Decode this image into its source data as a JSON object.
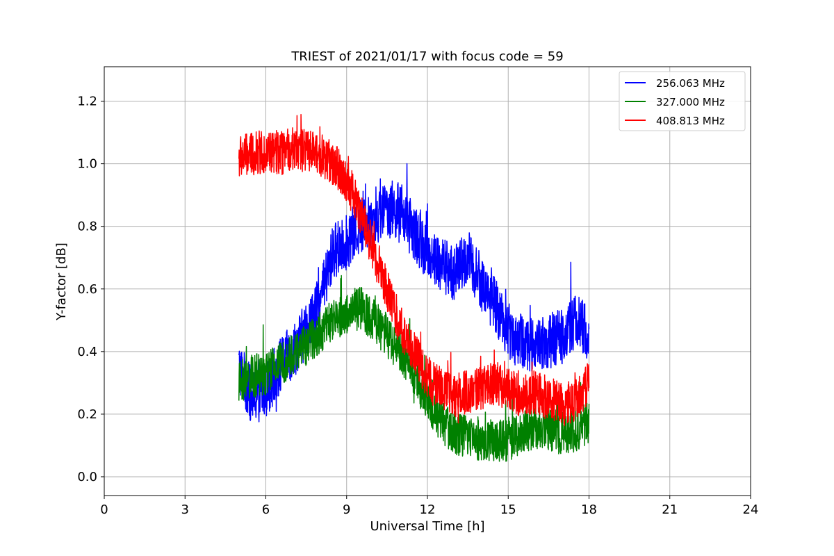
{
  "chart_data": {
    "type": "line",
    "title": "TRIEST of 2021/01/17 with focus code = 59",
    "xlabel": "Universal Time [h]",
    "ylabel": "Y-factor [dB]",
    "xlim": [
      0,
      24
    ],
    "ylim": [
      -0.06,
      1.31
    ],
    "xticks": [
      0,
      3,
      6,
      9,
      12,
      15,
      18,
      21,
      24
    ],
    "xtick_labels": [
      "0",
      "3",
      "6",
      "9",
      "12",
      "15",
      "18",
      "21",
      "24"
    ],
    "yticks": [
      0.0,
      0.2,
      0.4,
      0.6,
      0.8,
      1.0,
      1.2
    ],
    "ytick_labels": [
      "0.0",
      "0.2",
      "0.4",
      "0.6",
      "0.8",
      "1.0",
      "1.2"
    ],
    "grid": true,
    "legend_position": "top-right",
    "series": [
      {
        "name": "256.063 MHz",
        "color": "#0000ff",
        "x": [
          5.0,
          5.5,
          6.0,
          6.5,
          7.0,
          7.5,
          8.0,
          8.5,
          9.0,
          9.5,
          10.0,
          10.5,
          11.0,
          11.5,
          12.0,
          12.5,
          13.0,
          13.5,
          14.0,
          14.5,
          15.0,
          15.5,
          16.0,
          16.5,
          17.0,
          17.5,
          18.0
        ],
        "values": [
          0.35,
          0.25,
          0.28,
          0.35,
          0.4,
          0.47,
          0.55,
          0.72,
          0.75,
          0.8,
          0.82,
          0.86,
          0.85,
          0.78,
          0.72,
          0.68,
          0.65,
          0.7,
          0.62,
          0.55,
          0.47,
          0.43,
          0.42,
          0.43,
          0.45,
          0.5,
          0.45
        ],
        "noise": 0.09
      },
      {
        "name": "327.000 MHz",
        "color": "#008000",
        "x": [
          5.0,
          5.5,
          6.0,
          6.5,
          7.0,
          7.5,
          8.0,
          8.5,
          9.0,
          9.5,
          10.0,
          10.5,
          11.0,
          11.5,
          12.0,
          12.5,
          13.0,
          13.5,
          14.0,
          14.5,
          15.0,
          15.5,
          16.0,
          16.5,
          17.0,
          17.5,
          18.0
        ],
        "values": [
          0.3,
          0.32,
          0.33,
          0.36,
          0.39,
          0.42,
          0.46,
          0.5,
          0.52,
          0.54,
          0.5,
          0.45,
          0.4,
          0.32,
          0.25,
          0.18,
          0.14,
          0.13,
          0.12,
          0.11,
          0.12,
          0.14,
          0.16,
          0.15,
          0.14,
          0.15,
          0.17
        ],
        "noise": 0.07
      },
      {
        "name": "408.813 MHz",
        "color": "#ff0000",
        "x": [
          5.0,
          5.5,
          6.0,
          6.5,
          7.0,
          7.5,
          8.0,
          8.5,
          9.0,
          9.5,
          10.0,
          10.5,
          11.0,
          11.5,
          12.0,
          12.5,
          13.0,
          13.5,
          14.0,
          14.5,
          15.0,
          15.5,
          16.0,
          16.5,
          17.0,
          17.5,
          18.0
        ],
        "values": [
          1.02,
          1.03,
          1.04,
          1.03,
          1.05,
          1.04,
          1.03,
          1.0,
          0.95,
          0.85,
          0.72,
          0.6,
          0.48,
          0.4,
          0.32,
          0.28,
          0.26,
          0.27,
          0.28,
          0.3,
          0.28,
          0.26,
          0.27,
          0.25,
          0.23,
          0.24,
          0.3
        ],
        "noise": 0.07
      }
    ]
  }
}
